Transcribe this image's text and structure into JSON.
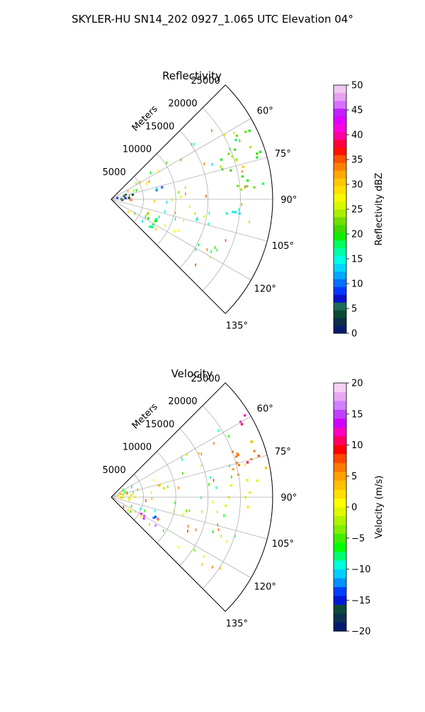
{
  "figure": {
    "title": "SKYLER-HU  SN14_202  0927_1.065 UTC Elevation 04°"
  },
  "chart_data": [
    {
      "type": "heatmap",
      "subtype": "polar-sector-ppi",
      "title": "Reflectivity",
      "radial_label": "Meters",
      "radial_ticks": [
        5000,
        10000,
        15000,
        20000,
        25000
      ],
      "radial_tick_labels": [
        "5000",
        "10000",
        "15000",
        "20000",
        "25000"
      ],
      "rlim": [
        0,
        25000
      ],
      "angle_range_deg": [
        45,
        135
      ],
      "angle_ticks": [
        60,
        75,
        90,
        105,
        120,
        135
      ],
      "angle_tick_labels": [
        "60°",
        "75°",
        "90°",
        "105°",
        "120°",
        "135°"
      ],
      "grid": true,
      "colorbar": {
        "label": "Reflectivity dBZ",
        "range": [
          0,
          50
        ],
        "ticks": [
          0,
          5,
          10,
          15,
          20,
          25,
          30,
          35,
          40,
          45,
          50
        ],
        "tick_labels": [
          "0",
          "5",
          "10",
          "15",
          "20",
          "25",
          "30",
          "35",
          "40",
          "45",
          "50"
        ]
      },
      "echo_regions": [
        {
          "az": [
            56,
            66
          ],
          "r": [
            20500,
            24500
          ],
          "value": 20
        },
        {
          "az": [
            66,
            80
          ],
          "r": [
            17000,
            24500
          ],
          "value": 22
        },
        {
          "az": [
            70,
            77
          ],
          "r": [
            19000,
            23000
          ],
          "value": 28
        },
        {
          "az": [
            79,
            88
          ],
          "r": [
            18500,
            24000
          ],
          "value": 21
        },
        {
          "az": [
            89,
            97
          ],
          "r": [
            17500,
            21500
          ],
          "value": 16
        },
        {
          "az": [
            110,
            125
          ],
          "r": [
            5000,
            8500
          ],
          "value": 17
        },
        {
          "az": [
            111,
            119
          ],
          "r": [
            5500,
            7500
          ],
          "value": 23
        },
        {
          "az": [
            60,
            90
          ],
          "r": [
            500,
            3500
          ],
          "value": 6
        },
        {
          "az": [
            70,
            80
          ],
          "r": [
            6500,
            8500
          ],
          "value": 9
        }
      ]
    },
    {
      "type": "heatmap",
      "subtype": "polar-sector-ppi",
      "title": "Velocity",
      "radial_label": "Meters",
      "radial_ticks": [
        5000,
        10000,
        15000,
        20000,
        25000
      ],
      "radial_tick_labels": [
        "5000",
        "10000",
        "15000",
        "20000",
        "25000"
      ],
      "rlim": [
        0,
        25000
      ],
      "angle_range_deg": [
        45,
        135
      ],
      "angle_ticks": [
        60,
        75,
        90,
        105,
        120,
        135
      ],
      "angle_tick_labels": [
        "60°",
        "75°",
        "90°",
        "105°",
        "120°",
        "135°"
      ],
      "grid": true,
      "colorbar": {
        "label": "Velocity (m/s)",
        "range": [
          -20,
          20
        ],
        "ticks": [
          -20,
          -15,
          -10,
          -5,
          0,
          5,
          10,
          15,
          20
        ],
        "tick_labels": [
          "−20",
          "−15",
          "−10",
          "−5",
          "0",
          "5",
          "10",
          "15",
          "20"
        ]
      },
      "echo_regions": [
        {
          "az": [
            56,
            65
          ],
          "r": [
            20500,
            24500
          ],
          "value": 13
        },
        {
          "az": [
            66,
            80
          ],
          "r": [
            17000,
            24500
          ],
          "value": 6
        },
        {
          "az": [
            70,
            77
          ],
          "r": [
            19000,
            23000
          ],
          "value": 8
        },
        {
          "az": [
            79,
            88
          ],
          "r": [
            18500,
            24000
          ],
          "value": 1
        },
        {
          "az": [
            89,
            97
          ],
          "r": [
            17500,
            21500
          ],
          "value": 0
        },
        {
          "az": [
            110,
            125
          ],
          "r": [
            5000,
            8500
          ],
          "value": 15
        },
        {
          "az": [
            110,
            118
          ],
          "r": [
            5500,
            7500
          ],
          "value": -12
        },
        {
          "az": [
            60,
            90
          ],
          "r": [
            500,
            3500
          ],
          "value": 1
        },
        {
          "az": [
            70,
            80
          ],
          "r": [
            6500,
            8500
          ],
          "value": 2
        }
      ]
    }
  ]
}
